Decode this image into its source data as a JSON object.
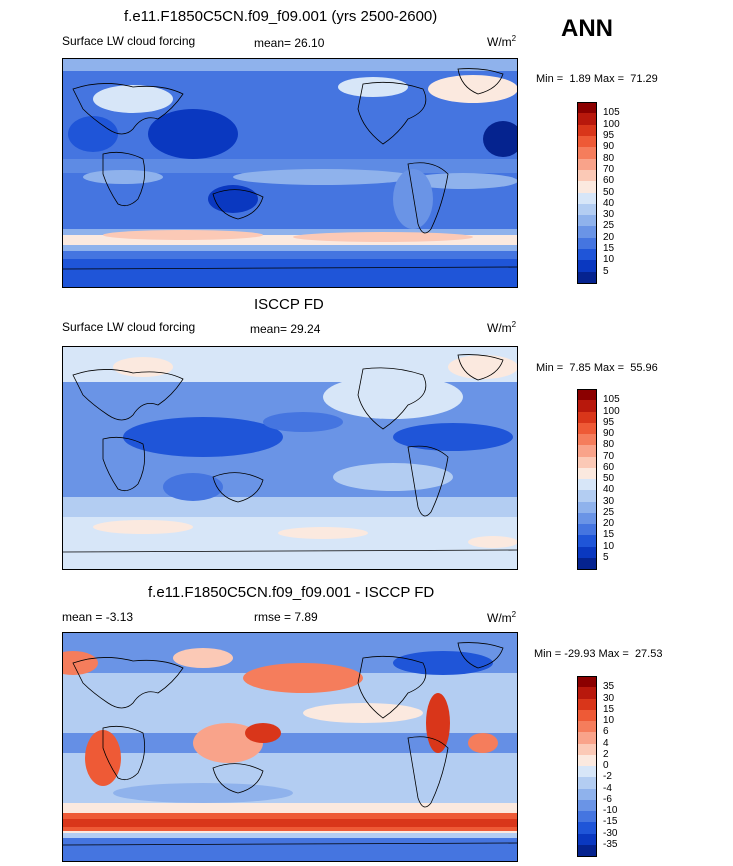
{
  "season": "ANN",
  "panels": [
    {
      "title": "f.e11.F1850C5CN.f09_f09.001 (yrs 2500-2600)",
      "left_label": "Surface LW cloud forcing",
      "center_label": "mean=  26.10",
      "units": "W/m",
      "units_sup": "2",
      "min_label": "Min =",
      "min_value": "1.89",
      "max_label": "Max =",
      "max_value": "71.29",
      "levels": [
        "105",
        "100",
        "95",
        "90",
        "80",
        "70",
        "60",
        "50",
        "40",
        "30",
        "25",
        "20",
        "15",
        "10",
        "5"
      ],
      "colors": [
        "#8b0000",
        "#b8180c",
        "#d9361a",
        "#ee5a36",
        "#f57d5c",
        "#f9a38a",
        "#fbc9b6",
        "#fbe9df",
        "#d7e6f8",
        "#b3cdf2",
        "#8fb2ec",
        "#6a94e6",
        "#4575e0",
        "#1f55d8",
        "#0a38c0",
        "#05238f"
      ]
    },
    {
      "title": "ISCCP FD",
      "left_label": "Surface LW cloud forcing",
      "center_label": "mean=  29.24",
      "units": "W/m",
      "units_sup": "2",
      "min_label": "Min =",
      "min_value": "7.85",
      "max_label": "Max =",
      "max_value": "55.96",
      "levels": [
        "105",
        "100",
        "95",
        "90",
        "80",
        "70",
        "60",
        "50",
        "40",
        "30",
        "25",
        "20",
        "15",
        "10",
        "5"
      ],
      "colors": [
        "#8b0000",
        "#b8180c",
        "#d9361a",
        "#ee5a36",
        "#f57d5c",
        "#f9a38a",
        "#fbc9b6",
        "#fbe9df",
        "#d7e6f8",
        "#b3cdf2",
        "#8fb2ec",
        "#6a94e6",
        "#4575e0",
        "#1f55d8",
        "#0a38c0",
        "#05238f"
      ]
    },
    {
      "title": "f.e11.F1850C5CN.f09_f09.001 - ISCCP FD",
      "left_label": "mean =  -3.13",
      "center_label": "rmse =   7.89",
      "units": "W/m",
      "units_sup": "2",
      "min_label": "Min =",
      "min_value": "-29.93",
      "max_label": "Max =",
      "max_value": "27.53",
      "levels": [
        "35",
        "30",
        "15",
        "10",
        "6",
        "4",
        "2",
        "0",
        "-2",
        "-4",
        "-6",
        "-10",
        "-15",
        "-30",
        "-35"
      ],
      "colors": [
        "#8b0000",
        "#b8180c",
        "#d9361a",
        "#ee5a36",
        "#f57d5c",
        "#f9a38a",
        "#fbc9b6",
        "#fbe9df",
        "#d7e6f8",
        "#b3cdf2",
        "#8fb2ec",
        "#6a94e6",
        "#4575e0",
        "#1f55d8",
        "#0a38c0",
        "#05238f"
      ]
    }
  ]
}
